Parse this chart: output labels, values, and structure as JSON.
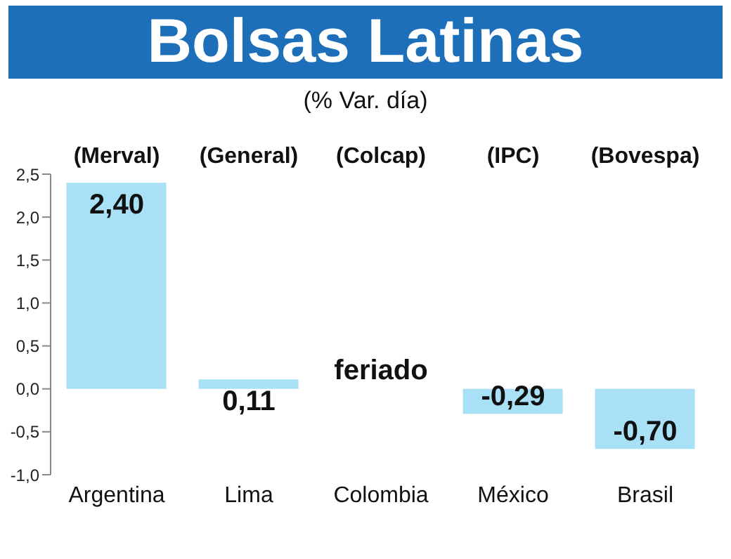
{
  "chart_data": {
    "type": "bar",
    "title": "Bolsas Latinas",
    "subtitle": "(% Var. día)",
    "categories": [
      "Argentina",
      "Lima",
      "Colombia",
      "México",
      "Brasil"
    ],
    "values": [
      2.4,
      0.11,
      null,
      -0.29,
      -0.7
    ],
    "value_labels": [
      "2,40",
      "0,11",
      "feriado",
      "-0,29",
      "-0,70"
    ],
    "color": "#a8e0f5",
    "ylim": [
      -1,
      2.5
    ],
    "yticks": [
      {
        "value": -1,
        "label": "-1,0"
      },
      {
        "value": -0.5,
        "label": "-0,5"
      },
      {
        "value": 0,
        "label": "0,0"
      },
      {
        "value": 0.5,
        "label": "0,5"
      },
      {
        "value": 1,
        "label": "1,0"
      },
      {
        "value": 1.5,
        "label": "1,5"
      },
      {
        "value": 2,
        "label": "2,0"
      },
      {
        "value": 2.5,
        "label": "2,5"
      }
    ],
    "annotations": [
      "(Merval)",
      "(General)",
      "(Colcap)",
      "(IPC)",
      "(Bovespa)"
    ],
    "grid": false,
    "legend": false
  }
}
